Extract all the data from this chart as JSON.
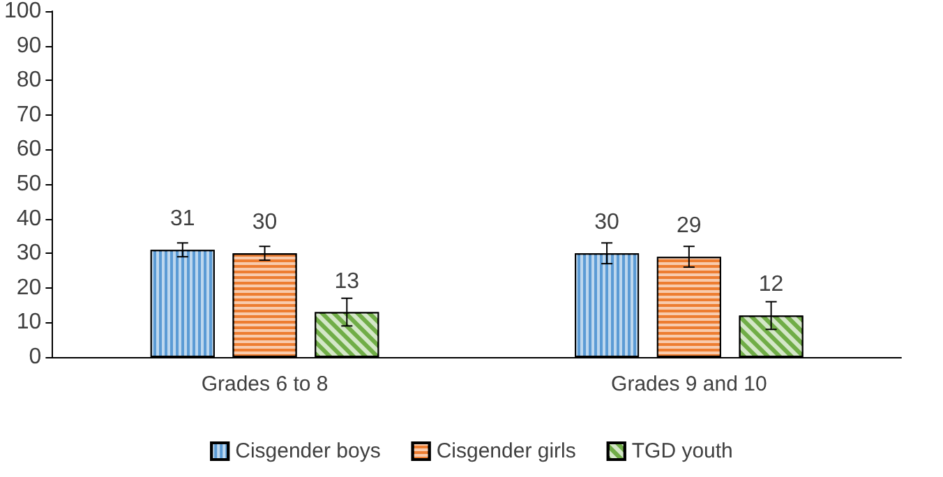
{
  "chart_data": {
    "type": "bar",
    "categories": [
      "Grades 6 to 8",
      "Grades 9 and 10"
    ],
    "series": [
      {
        "name": "Cisgender boys",
        "color": "#5b9bd5",
        "values": [
          31,
          30
        ],
        "errors": [
          2,
          3
        ]
      },
      {
        "name": "Cisgender girls",
        "color": "#ed7d31",
        "values": [
          30,
          29
        ],
        "errors": [
          2,
          3
        ]
      },
      {
        "name": "TGD youth",
        "color": "#70ad47",
        "values": [
          13,
          12
        ],
        "errors": [
          4,
          4
        ]
      }
    ],
    "ylim": [
      0,
      100
    ],
    "yticks": [
      0,
      10,
      20,
      30,
      40,
      50,
      60,
      70,
      80,
      90,
      100
    ],
    "grid": false,
    "legend": "bottom",
    "data_labels": true
  }
}
